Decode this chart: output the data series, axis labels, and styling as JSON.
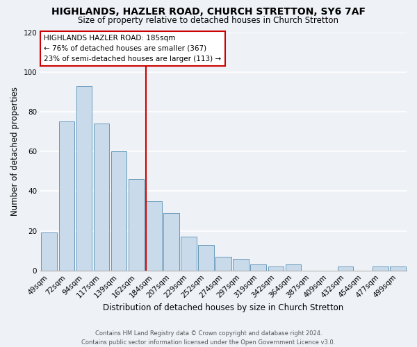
{
  "title": "HIGHLANDS, HAZLER ROAD, CHURCH STRETTON, SY6 7AF",
  "subtitle": "Size of property relative to detached houses in Church Stretton",
  "xlabel": "Distribution of detached houses by size in Church Stretton",
  "ylabel": "Number of detached properties",
  "footer_line1": "Contains HM Land Registry data © Crown copyright and database right 2024.",
  "footer_line2": "Contains public sector information licensed under the Open Government Licence v3.0.",
  "bar_labels": [
    "49sqm",
    "72sqm",
    "94sqm",
    "117sqm",
    "139sqm",
    "162sqm",
    "184sqm",
    "207sqm",
    "229sqm",
    "252sqm",
    "274sqm",
    "297sqm",
    "319sqm",
    "342sqm",
    "364sqm",
    "387sqm",
    "409sqm",
    "432sqm",
    "454sqm",
    "477sqm",
    "499sqm"
  ],
  "bar_values": [
    19,
    75,
    93,
    74,
    60,
    46,
    35,
    29,
    17,
    13,
    7,
    6,
    3,
    2,
    3,
    0,
    0,
    2,
    0,
    2,
    2
  ],
  "bar_color": "#c9daea",
  "bar_edge_color": "#6699bb",
  "ylim": [
    0,
    120
  ],
  "yticks": [
    0,
    20,
    40,
    60,
    80,
    100,
    120
  ],
  "vline_color": "#cc0000",
  "annotation_title": "HIGHLANDS HAZLER ROAD: 185sqm",
  "annotation_line1": "← 76% of detached houses are smaller (367)",
  "annotation_line2": "23% of semi-detached houses are larger (113) →",
  "annotation_box_color": "#ffffff",
  "annotation_box_edge_color": "#cc0000",
  "bg_color": "#eef2f7",
  "grid_color": "#ffffff",
  "title_fontsize": 10,
  "subtitle_fontsize": 8.5,
  "xlabel_fontsize": 8.5,
  "ylabel_fontsize": 8.5,
  "tick_fontsize": 7.5,
  "footer_fontsize": 6.0
}
